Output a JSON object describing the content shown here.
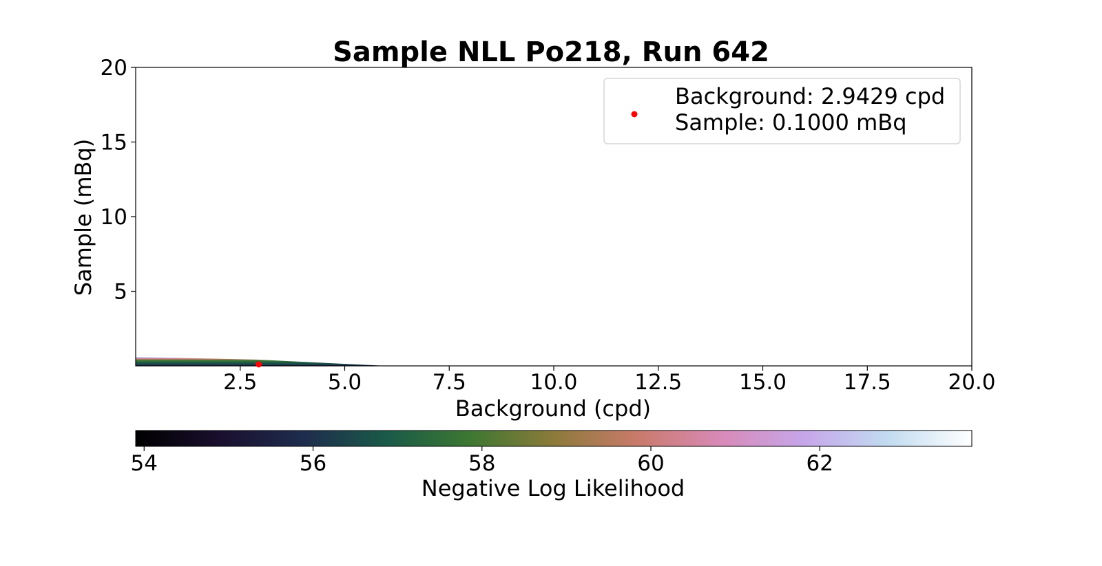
{
  "chart_data": {
    "type": "heatmap",
    "title": "Sample NLL Po218, Run 642",
    "xlabel": "Background (cpd)",
    "ylabel": "Sample (mBq)",
    "xlim": [
      0.0,
      20.0
    ],
    "ylim": [
      0.0,
      20.0
    ],
    "x_ticks": [
      2.5,
      5.0,
      7.5,
      10.0,
      12.5,
      15.0,
      17.5,
      20.0
    ],
    "x_tick_labels": [
      "2.5",
      "5.0",
      "7.5",
      "10.0",
      "12.5",
      "15.0",
      "17.5",
      "20.0"
    ],
    "y_ticks": [
      5,
      10,
      15,
      20
    ],
    "y_tick_labels": [
      "5",
      "10",
      "15",
      "20"
    ],
    "grid": false,
    "colormap": "cubehelix",
    "colorbar": {
      "label": "Negative Log Likelihood",
      "range": [
        53.9,
        63.8
      ],
      "ticks": [
        54,
        56,
        58,
        60,
        62
      ],
      "tick_labels": [
        "54",
        "56",
        "58",
        "60",
        "62"
      ],
      "orientation": "horizontal"
    },
    "best_fit": {
      "background": 2.9429,
      "sample": 0.1,
      "color": "#ff0000"
    },
    "legend": {
      "placement": "top-right",
      "entries": [
        "Background: 2.9429 cpd",
        "Sample: 0.1000 mBq"
      ]
    }
  }
}
